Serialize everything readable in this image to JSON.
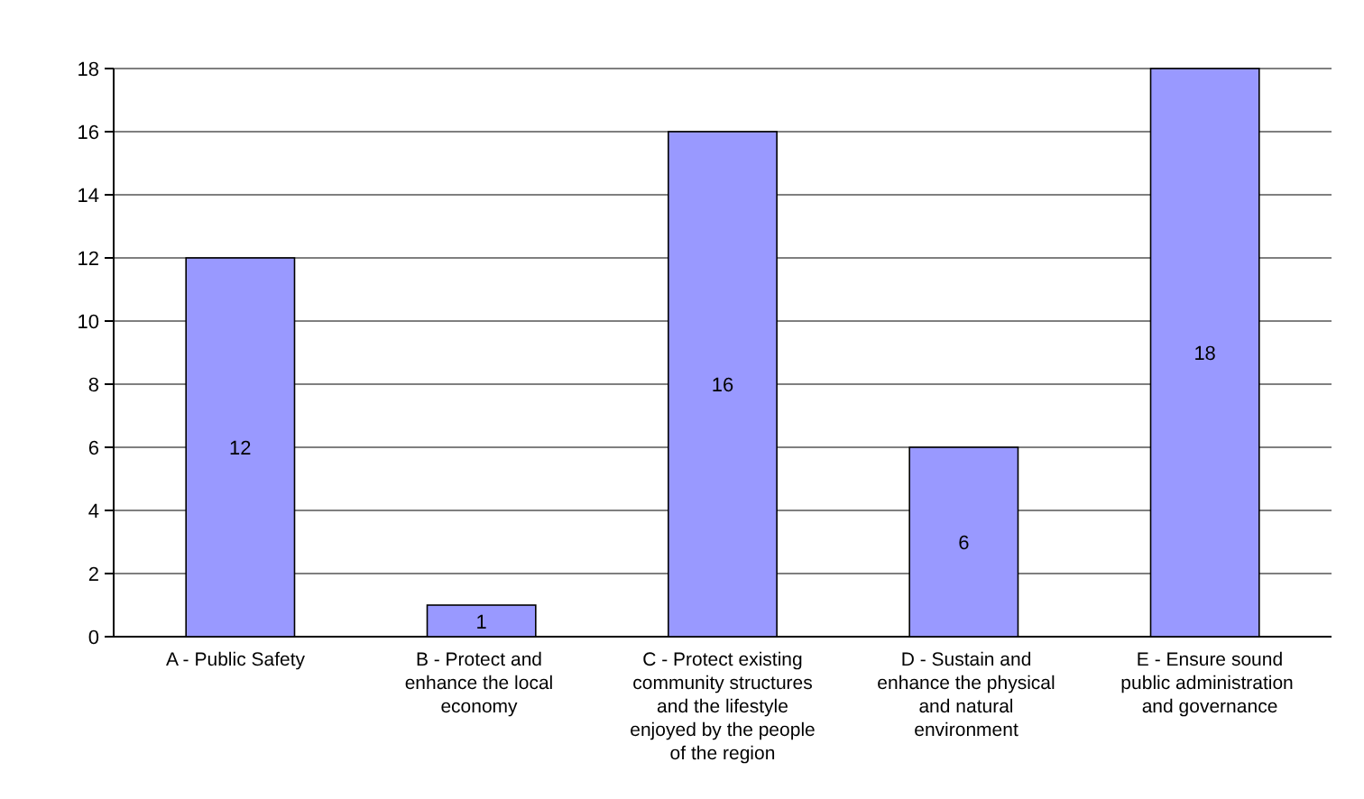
{
  "chart_data": {
    "type": "bar",
    "categories": [
      "A - Public Safety",
      "B - Protect and enhance the local economy",
      "C - Protect existing community structures and the lifestyle enjoyed by the people of the region",
      "D - Sustain and enhance the physical and natural environment",
      "E - Ensure sound public administration  and governance"
    ],
    "values": [
      12,
      1,
      16,
      6,
      18
    ],
    "color": "#9999ff",
    "ylim": [
      0,
      18
    ],
    "yticks": [
      0,
      2,
      4,
      6,
      8,
      10,
      12,
      14,
      16,
      18
    ],
    "grid": "y",
    "data_labels": true
  }
}
